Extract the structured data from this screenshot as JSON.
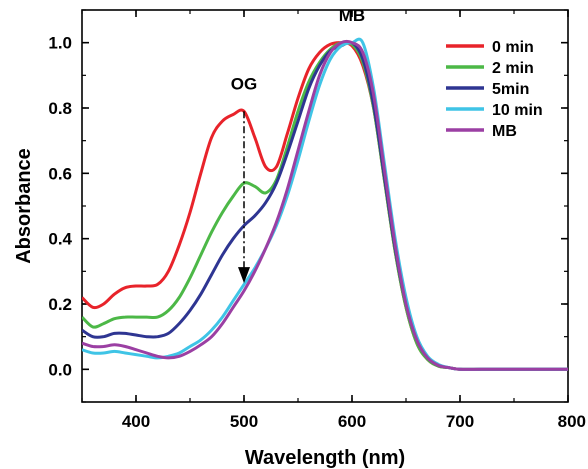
{
  "chart_data": {
    "type": "line",
    "title": "",
    "xlabel": "Wavelength (nm)",
    "ylabel": "Absorbance",
    "xlim": [
      350,
      800
    ],
    "ylim": [
      -0.1,
      1.1
    ],
    "x_ticks": [
      400,
      500,
      600,
      700,
      800
    ],
    "x_tick_labels": [
      "400",
      "500",
      "600",
      "700",
      "800"
    ],
    "y_ticks": [
      0.0,
      0.2,
      0.4,
      0.6,
      0.8,
      1.0
    ],
    "y_tick_labels": [
      "0.0",
      "0.2",
      "0.4",
      "0.6",
      "0.8",
      "1.0"
    ],
    "grid": false,
    "legend_position": "top-right",
    "annotations": [
      {
        "text": "OG",
        "x": 500,
        "y": 0.85
      },
      {
        "text": "MB",
        "x": 600,
        "y": 1.06
      }
    ],
    "arrow": {
      "x": 500,
      "y_start": 0.79,
      "y_end": 0.27,
      "style": "dash-dot"
    },
    "series": [
      {
        "name": "0 min",
        "color": "#e8232a",
        "x": [
          350,
          360,
          370,
          380,
          390,
          400,
          410,
          420,
          430,
          440,
          450,
          460,
          470,
          480,
          490,
          500,
          510,
          520,
          530,
          540,
          550,
          560,
          570,
          580,
          590,
          600,
          610,
          620,
          630,
          640,
          650,
          660,
          670,
          680,
          690,
          700,
          720,
          740,
          760,
          780,
          800
        ],
        "y": [
          0.22,
          0.19,
          0.2,
          0.23,
          0.25,
          0.255,
          0.255,
          0.26,
          0.3,
          0.38,
          0.48,
          0.6,
          0.71,
          0.76,
          0.78,
          0.79,
          0.71,
          0.62,
          0.62,
          0.72,
          0.83,
          0.92,
          0.97,
          0.995,
          1.0,
          0.99,
          0.93,
          0.8,
          0.58,
          0.36,
          0.19,
          0.08,
          0.03,
          0.01,
          0.005,
          0.0,
          0.0,
          0.0,
          0.0,
          0.0,
          0.0
        ]
      },
      {
        "name": "2 min",
        "color": "#4cb847",
        "x": [
          350,
          360,
          370,
          380,
          390,
          400,
          410,
          420,
          430,
          440,
          450,
          460,
          470,
          480,
          490,
          500,
          510,
          520,
          530,
          540,
          550,
          560,
          570,
          580,
          590,
          600,
          610,
          620,
          630,
          640,
          650,
          660,
          670,
          680,
          690,
          700,
          720,
          740,
          760,
          780,
          800
        ],
        "y": [
          0.16,
          0.13,
          0.14,
          0.155,
          0.16,
          0.16,
          0.16,
          0.16,
          0.18,
          0.22,
          0.28,
          0.35,
          0.42,
          0.48,
          0.53,
          0.57,
          0.56,
          0.54,
          0.58,
          0.68,
          0.79,
          0.88,
          0.94,
          0.98,
          1.0,
          0.995,
          0.94,
          0.8,
          0.58,
          0.36,
          0.19,
          0.08,
          0.03,
          0.01,
          0.005,
          0.0,
          0.0,
          0.0,
          0.0,
          0.0,
          0.0
        ]
      },
      {
        "name": "5min",
        "color": "#2e3592",
        "x": [
          350,
          360,
          370,
          380,
          390,
          400,
          410,
          420,
          430,
          440,
          450,
          460,
          470,
          480,
          490,
          500,
          510,
          520,
          530,
          540,
          550,
          560,
          570,
          580,
          590,
          600,
          610,
          620,
          630,
          640,
          650,
          660,
          670,
          680,
          690,
          700,
          720,
          740,
          760,
          780,
          800
        ],
        "y": [
          0.12,
          0.1,
          0.1,
          0.11,
          0.11,
          0.105,
          0.1,
          0.1,
          0.11,
          0.14,
          0.18,
          0.23,
          0.29,
          0.35,
          0.4,
          0.44,
          0.47,
          0.51,
          0.57,
          0.66,
          0.76,
          0.86,
          0.93,
          0.975,
          0.99,
          1.0,
          0.95,
          0.81,
          0.59,
          0.37,
          0.2,
          0.09,
          0.035,
          0.012,
          0.005,
          0.0,
          0.0,
          0.0,
          0.0,
          0.0,
          0.0
        ]
      },
      {
        "name": "10 min",
        "color": "#3fc4e6",
        "x": [
          350,
          360,
          370,
          380,
          390,
          400,
          410,
          420,
          430,
          440,
          450,
          460,
          470,
          480,
          490,
          500,
          510,
          520,
          530,
          540,
          550,
          560,
          570,
          580,
          590,
          600,
          610,
          620,
          630,
          640,
          650,
          660,
          670,
          680,
          690,
          700,
          720,
          740,
          760,
          780,
          800
        ],
        "y": [
          0.06,
          0.05,
          0.05,
          0.055,
          0.05,
          0.045,
          0.04,
          0.035,
          0.04,
          0.05,
          0.07,
          0.09,
          0.12,
          0.16,
          0.21,
          0.26,
          0.31,
          0.37,
          0.44,
          0.53,
          0.64,
          0.76,
          0.87,
          0.95,
          0.99,
          1.0,
          1.0,
          0.86,
          0.63,
          0.4,
          0.22,
          0.1,
          0.04,
          0.015,
          0.005,
          0.0,
          0.0,
          0.0,
          0.0,
          0.0,
          0.0
        ]
      },
      {
        "name": "MB",
        "color": "#9b3fa3",
        "x": [
          350,
          360,
          370,
          380,
          390,
          400,
          410,
          420,
          430,
          440,
          450,
          460,
          470,
          480,
          490,
          500,
          510,
          520,
          530,
          540,
          550,
          560,
          570,
          580,
          590,
          600,
          610,
          620,
          630,
          640,
          650,
          660,
          670,
          680,
          690,
          700,
          720,
          740,
          760,
          780,
          800
        ],
        "y": [
          0.08,
          0.07,
          0.07,
          0.075,
          0.07,
          0.06,
          0.05,
          0.04,
          0.035,
          0.04,
          0.055,
          0.075,
          0.1,
          0.14,
          0.19,
          0.24,
          0.3,
          0.37,
          0.45,
          0.55,
          0.67,
          0.79,
          0.9,
          0.97,
          1.0,
          1.0,
          0.97,
          0.84,
          0.61,
          0.38,
          0.2,
          0.09,
          0.035,
          0.012,
          0.005,
          0.0,
          0.0,
          0.0,
          0.0,
          0.0,
          0.0
        ]
      }
    ]
  }
}
